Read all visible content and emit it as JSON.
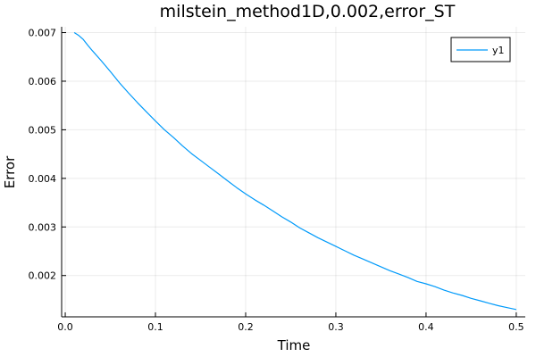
{
  "chart_data": {
    "type": "line",
    "title": "milstein_method1D,0.002,error_ST",
    "xlabel": "Time",
    "ylabel": "Error",
    "xlim": [
      -0.004,
      0.51
    ],
    "ylim": [
      0.00115,
      0.00712
    ],
    "xticks": [
      0.0,
      0.1,
      0.2,
      0.3,
      0.4,
      0.5
    ],
    "xtick_labels": [
      "0.0",
      "0.1",
      "0.2",
      "0.3",
      "0.4",
      "0.5"
    ],
    "yticks": [
      0.002,
      0.003,
      0.004,
      0.005,
      0.006,
      0.007
    ],
    "ytick_labels": [
      "0.002",
      "0.003",
      "0.004",
      "0.005",
      "0.006",
      "0.007"
    ],
    "grid": true,
    "legend_position": "top-right",
    "series": [
      {
        "name": "y1",
        "color": "#009AFA",
        "x": [
          0.01,
          0.015,
          0.02,
          0.025,
          0.03,
          0.04,
          0.05,
          0.06,
          0.07,
          0.08,
          0.09,
          0.1,
          0.11,
          0.12,
          0.13,
          0.14,
          0.15,
          0.16,
          0.17,
          0.18,
          0.19,
          0.2,
          0.21,
          0.22,
          0.23,
          0.24,
          0.25,
          0.26,
          0.27,
          0.28,
          0.29,
          0.3,
          0.31,
          0.32,
          0.33,
          0.34,
          0.35,
          0.36,
          0.37,
          0.38,
          0.39,
          0.4,
          0.41,
          0.42,
          0.43,
          0.44,
          0.45,
          0.46,
          0.47,
          0.48,
          0.49,
          0.5
        ],
        "y": [
          0.007,
          0.00694,
          0.00686,
          0.00674,
          0.00663,
          0.00642,
          0.0062,
          0.00597,
          0.00576,
          0.00556,
          0.00537,
          0.00518,
          0.005,
          0.00484,
          0.00467,
          0.00451,
          0.00437,
          0.00423,
          0.00409,
          0.00395,
          0.00381,
          0.00368,
          0.00356,
          0.00345,
          0.00333,
          0.00321,
          0.0031,
          0.00298,
          0.00288,
          0.00278,
          0.00269,
          0.0026,
          0.00251,
          0.00242,
          0.00234,
          0.00226,
          0.00218,
          0.0021,
          0.00203,
          0.00196,
          0.00188,
          0.00183,
          0.00177,
          0.0017,
          0.00164,
          0.00159,
          0.00153,
          0.00148,
          0.00143,
          0.00138,
          0.00134,
          0.0013
        ]
      }
    ]
  }
}
